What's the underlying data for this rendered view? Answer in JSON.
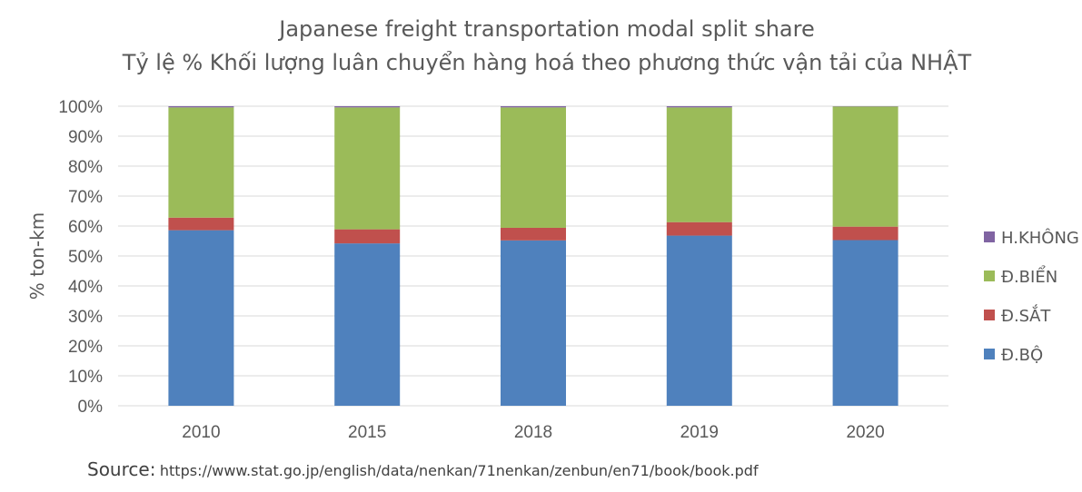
{
  "chart_data": {
    "type": "bar",
    "stacked": true,
    "title": "Japanese freight transportation modal split share",
    "subtitle": "Tỷ lệ % Khối lượng luân chuyển hàng hoá theo phương thức vận tải của NHẬT",
    "xlabel": "",
    "ylabel": "% ton-km",
    "ylim": [
      0,
      100
    ],
    "yticks": [
      "0%",
      "10%",
      "20%",
      "30%",
      "40%",
      "50%",
      "60%",
      "70%",
      "80%",
      "90%",
      "100%"
    ],
    "grid": true,
    "legend_position": "right",
    "categories": [
      "2010",
      "2015",
      "2018",
      "2019",
      "2020"
    ],
    "series": [
      {
        "name": "Đ.BỘ",
        "color": "#4f81bd",
        "values": [
          58.6,
          54.2,
          55.2,
          56.8,
          55.3
        ]
      },
      {
        "name": "Đ.SẮT",
        "color": "#c0504d",
        "values": [
          4.2,
          4.7,
          4.2,
          4.5,
          4.5
        ]
      },
      {
        "name": "Đ.BIỂN",
        "color": "#9bbb59",
        "values": [
          36.8,
          40.7,
          40.2,
          38.3,
          40.1
        ]
      },
      {
        "name": "H.KHÔNG",
        "color": "#8064a2",
        "values": [
          0.4,
          0.4,
          0.4,
          0.4,
          0.1
        ]
      }
    ]
  },
  "source": {
    "label": "Source:",
    "url": "https://www.stat.go.jp/english/data/nenkan/71nenkan/zenbun/en71/book/book.pdf"
  }
}
